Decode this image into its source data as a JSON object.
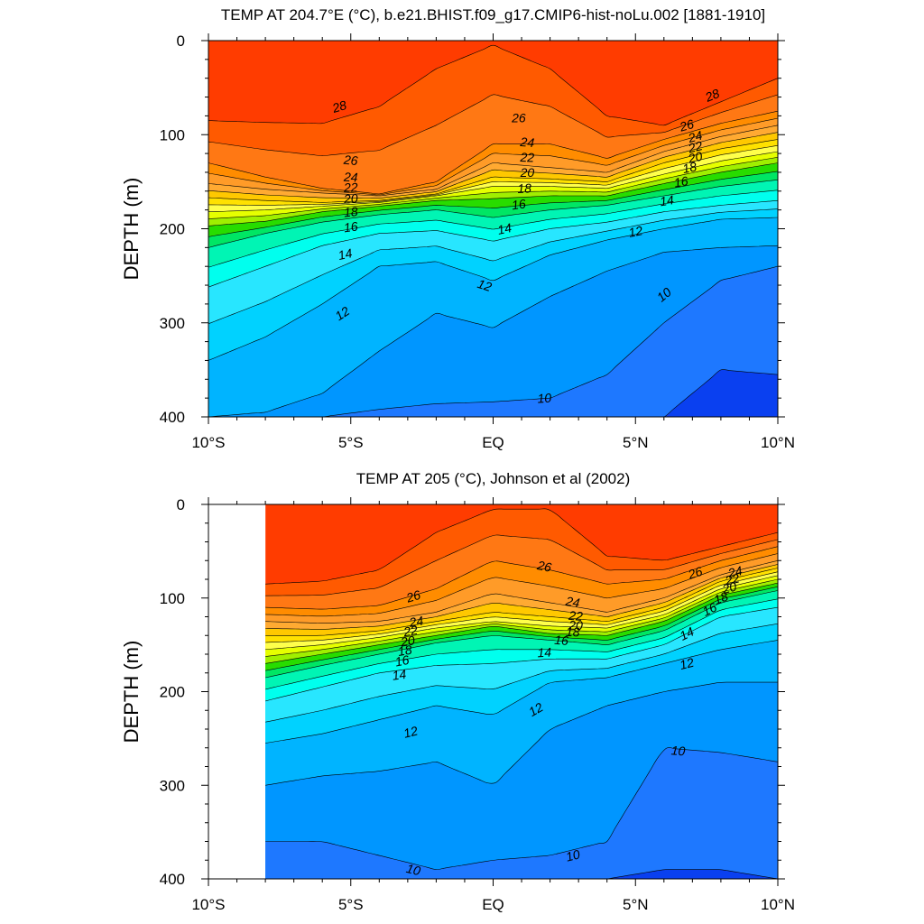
{
  "chart_data": [
    {
      "type": "contour",
      "title": "TEMP AT 204.7°E (°C), b.e21.BHIST.f09_g17.CMIP6-hist-noLu.002 [1881-1910]",
      "ylabel": "DEPTH (m)",
      "xlabel": "",
      "x_ticks": [
        "10°S",
        "5°S",
        "EQ",
        "5°N",
        "10°N"
      ],
      "y_ticks": [
        "0",
        "100",
        "200",
        "300",
        "400"
      ],
      "xlim": [
        -10,
        10
      ],
      "ylim": [
        400,
        0
      ],
      "contour_interval_degC": 1,
      "x": [
        -10,
        -8,
        -6,
        -4,
        -2,
        0,
        2,
        4,
        6,
        8,
        10
      ],
      "isotherm_depths": [
        {
          "temp": 28,
          "depth": [
            85,
            87,
            88,
            70,
            30,
            5,
            30,
            80,
            90,
            65,
            40
          ]
        },
        {
          "temp": 26,
          "depth": [
            130,
            145,
            157,
            163,
            150,
            110,
            110,
            125,
            105,
            88,
            75
          ]
        },
        {
          "temp": 24,
          "depth": [
            152,
            158,
            162,
            165,
            158,
            130,
            135,
            140,
            118,
            102,
            90
          ]
        },
        {
          "temp": 22,
          "depth": [
            167,
            170,
            172,
            170,
            163,
            145,
            147,
            150,
            130,
            115,
            105
          ]
        },
        {
          "temp": 20,
          "depth": [
            182,
            180,
            176,
            172,
            165,
            155,
            155,
            157,
            142,
            128,
            118
          ]
        },
        {
          "temp": 18,
          "depth": [
            197,
            192,
            182,
            176,
            170,
            168,
            165,
            165,
            152,
            140,
            130
          ]
        },
        {
          "temp": 16,
          "depth": [
            220,
            205,
            193,
            185,
            180,
            188,
            180,
            175,
            165,
            155,
            148
          ]
        },
        {
          "temp": 14,
          "depth": [
            262,
            240,
            218,
            205,
            202,
            213,
            200,
            193,
            182,
            175,
            170
          ]
        },
        {
          "temp": 12,
          "depth": [
            340,
            315,
            280,
            240,
            235,
            255,
            228,
            212,
            200,
            190,
            188
          ]
        },
        {
          "temp": 11,
          "depth": [
            400,
            395,
            375,
            330,
            290,
            305,
            272,
            245,
            225,
            220,
            218
          ]
        },
        {
          "temp": 10,
          "depth": [
            400,
            400,
            400,
            392,
            386,
            384,
            380,
            355,
            300,
            255,
            240
          ]
        },
        {
          "temp": 9,
          "depth": [
            400,
            400,
            400,
            400,
            400,
            400,
            400,
            400,
            400,
            350,
            355
          ]
        }
      ],
      "labels": [
        {
          "text": "28",
          "x": -5.4,
          "depth": 70
        },
        {
          "text": "28",
          "x": 7.7,
          "depth": 58
        },
        {
          "text": "26",
          "x": -5.0,
          "depth": 127
        },
        {
          "text": "26",
          "x": 0.9,
          "depth": 82
        },
        {
          "text": "26",
          "x": 6.8,
          "depth": 90
        },
        {
          "text": "24",
          "x": -5.0,
          "depth": 145
        },
        {
          "text": "24",
          "x": 1.2,
          "depth": 108
        },
        {
          "text": "24",
          "x": 7.1,
          "depth": 102
        },
        {
          "text": "22",
          "x": -5.0,
          "depth": 156
        },
        {
          "text": "22",
          "x": 1.2,
          "depth": 124
        },
        {
          "text": "22",
          "x": 7.1,
          "depth": 113
        },
        {
          "text": "20",
          "x": -5.0,
          "depth": 168
        },
        {
          "text": "20",
          "x": 1.2,
          "depth": 140
        },
        {
          "text": "20",
          "x": 7.1,
          "depth": 124
        },
        {
          "text": "18",
          "x": -5.0,
          "depth": 182
        },
        {
          "text": "18",
          "x": 1.1,
          "depth": 157
        },
        {
          "text": "18",
          "x": 6.9,
          "depth": 135
        },
        {
          "text": "16",
          "x": -5.0,
          "depth": 198
        },
        {
          "text": "16",
          "x": 0.9,
          "depth": 174
        },
        {
          "text": "16",
          "x": 6.6,
          "depth": 150
        },
        {
          "text": "14",
          "x": -5.2,
          "depth": 227
        },
        {
          "text": "14",
          "x": 0.4,
          "depth": 200
        },
        {
          "text": "14",
          "x": 6.1,
          "depth": 170
        },
        {
          "text": "12",
          "x": -5.3,
          "depth": 290
        },
        {
          "text": "12",
          "x": -0.3,
          "depth": 260
        },
        {
          "text": "12",
          "x": 5.0,
          "depth": 203
        },
        {
          "text": "10",
          "x": 6.0,
          "depth": 270
        },
        {
          "text": "10",
          "x": 1.8,
          "depth": 380
        }
      ]
    },
    {
      "type": "contour",
      "title": "TEMP AT 205 (°C), Johnson et al (2002)",
      "ylabel": "DEPTH (m)",
      "xlabel": "",
      "x_ticks": [
        "10°S",
        "5°S",
        "EQ",
        "5°N",
        "10°N"
      ],
      "y_ticks": [
        "0",
        "100",
        "200",
        "300",
        "400"
      ],
      "xlim": [
        -10,
        10
      ],
      "ylim": [
        400,
        0
      ],
      "data_xlim": [
        -8,
        10
      ],
      "contour_interval_degC": 1,
      "x": [
        -8,
        -6,
        -4,
        -2,
        0,
        2,
        4,
        6,
        8,
        10
      ],
      "isotherm_depths": [
        {
          "temp": 28,
          "depth": [
            85,
            82,
            70,
            30,
            5,
            5,
            55,
            60,
            45,
            30
          ]
        },
        {
          "temp": 26,
          "depth": [
            110,
            112,
            108,
            90,
            60,
            70,
            85,
            80,
            60,
            45
          ]
        },
        {
          "temp": 24,
          "depth": [
            125,
            127,
            125,
            115,
            95,
            105,
            115,
            100,
            75,
            60
          ]
        },
        {
          "temp": 22,
          "depth": [
            140,
            140,
            135,
            125,
            115,
            120,
            125,
            110,
            82,
            68
          ]
        },
        {
          "temp": 20,
          "depth": [
            155,
            150,
            142,
            132,
            125,
            130,
            132,
            118,
            90,
            76
          ]
        },
        {
          "temp": 18,
          "depth": [
            170,
            160,
            150,
            140,
            130,
            138,
            140,
            125,
            97,
            84
          ]
        },
        {
          "temp": 16,
          "depth": [
            185,
            172,
            160,
            148,
            140,
            145,
            150,
            135,
            105,
            92
          ]
        },
        {
          "temp": 14,
          "depth": [
            210,
            195,
            180,
            172,
            170,
            165,
            165,
            150,
            120,
            110
          ]
        },
        {
          "temp": 12,
          "depth": [
            255,
            245,
            230,
            215,
            225,
            190,
            185,
            170,
            155,
            145
          ]
        },
        {
          "temp": 11,
          "depth": [
            300,
            290,
            285,
            275,
            300,
            240,
            215,
            200,
            190,
            190
          ]
        },
        {
          "temp": 10,
          "depth": [
            360,
            360,
            375,
            390,
            380,
            375,
            360,
            260,
            265,
            275
          ]
        },
        {
          "temp": 9,
          "depth": [
            400,
            400,
            400,
            400,
            400,
            400,
            400,
            390,
            390,
            400
          ]
        }
      ],
      "labels": [
        {
          "text": "26",
          "x": -2.8,
          "depth": 98
        },
        {
          "text": "26",
          "x": 1.8,
          "depth": 66
        },
        {
          "text": "26",
          "x": 7.1,
          "depth": 73
        },
        {
          "text": "24",
          "x": -2.7,
          "depth": 125
        },
        {
          "text": "24",
          "x": 2.8,
          "depth": 104
        },
        {
          "text": "24",
          "x": 8.5,
          "depth": 72
        },
        {
          "text": "22",
          "x": -2.9,
          "depth": 135
        },
        {
          "text": "22",
          "x": 2.9,
          "depth": 119
        },
        {
          "text": "22",
          "x": 8.4,
          "depth": 80
        },
        {
          "text": "20",
          "x": -3.0,
          "depth": 146
        },
        {
          "text": "20",
          "x": 2.9,
          "depth": 129
        },
        {
          "text": "20",
          "x": 8.3,
          "depth": 89
        },
        {
          "text": "18",
          "x": -3.1,
          "depth": 156
        },
        {
          "text": "18",
          "x": 2.8,
          "depth": 136
        },
        {
          "text": "18",
          "x": 8.0,
          "depth": 100
        },
        {
          "text": "16",
          "x": -3.2,
          "depth": 167
        },
        {
          "text": "16",
          "x": 2.4,
          "depth": 145
        },
        {
          "text": "16",
          "x": 7.6,
          "depth": 112
        },
        {
          "text": "14",
          "x": -3.3,
          "depth": 182
        },
        {
          "text": "14",
          "x": 1.8,
          "depth": 158
        },
        {
          "text": "14",
          "x": 6.8,
          "depth": 138
        },
        {
          "text": "12",
          "x": -2.9,
          "depth": 243
        },
        {
          "text": "12",
          "x": 1.5,
          "depth": 219
        },
        {
          "text": "12",
          "x": 6.8,
          "depth": 170
        },
        {
          "text": "10",
          "x": 6.5,
          "depth": 263
        },
        {
          "text": "10",
          "x": 2.8,
          "depth": 375
        },
        {
          "text": "10",
          "x": -2.8,
          "depth": 390
        }
      ]
    }
  ],
  "colormap": [
    "#0000dc",
    "#0a40f0",
    "#1e78ff",
    "#0096ff",
    "#00b4ff",
    "#00d2ff",
    "#28e6ff",
    "#00ffee",
    "#00f5b4",
    "#00e664",
    "#28dc00",
    "#a0ef00",
    "#e6ff00",
    "#ffff4b",
    "#ffe100",
    "#ffc800",
    "#ffaa32",
    "#ff9b28",
    "#ff8c00",
    "#ff7814",
    "#ff5a00",
    "#ff3c00",
    "#ff0000",
    "#dc0000"
  ]
}
